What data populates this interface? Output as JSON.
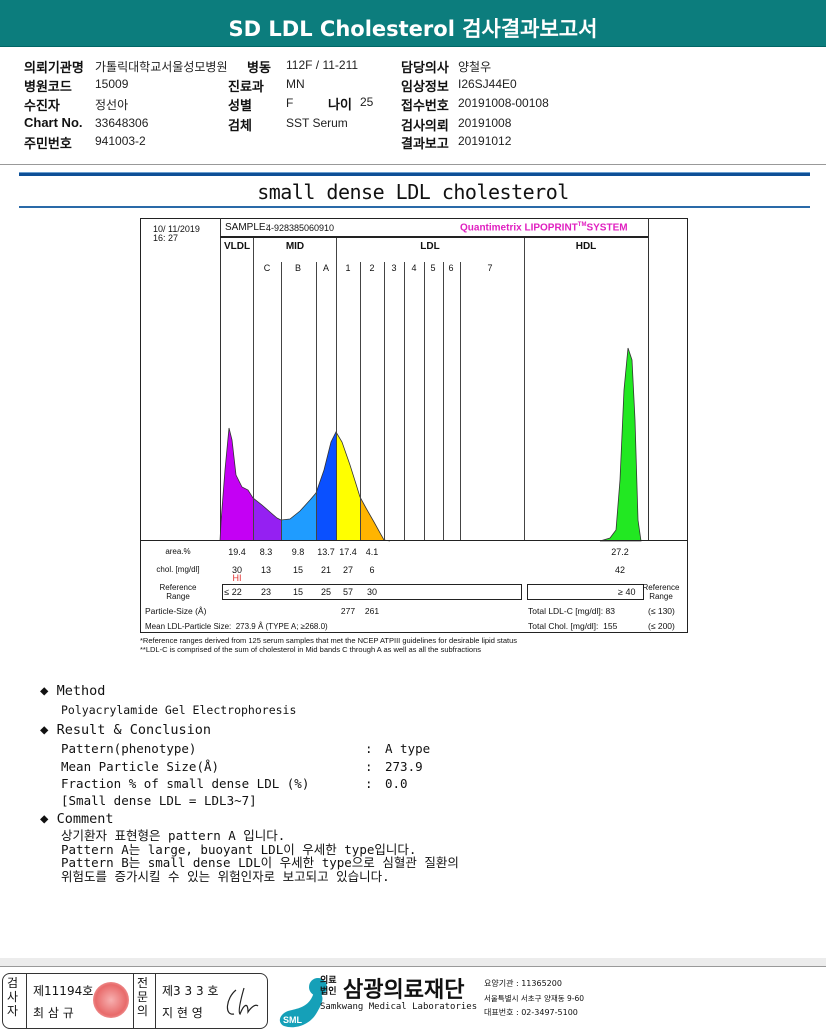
{
  "header": {
    "title": "SD LDL Cholesterol 검사결과보고서"
  },
  "info": {
    "rows": [
      [
        {
          "label": "의뢰기관명",
          "value": "가톨릭대학교서울성모병원"
        },
        {
          "label": "병동",
          "value": "112F / 11-211"
        },
        {
          "label": "담당의사",
          "value": "양철우"
        }
      ],
      [
        {
          "label": "병원코드",
          "value": "15009"
        },
        {
          "label": "진료과",
          "value": "MN"
        },
        {
          "label": "임상정보",
          "value": "I26SJ44E0"
        }
      ],
      [
        {
          "label": "수진자",
          "value": "정선아"
        },
        {
          "label": "성별",
          "value": "F"
        },
        {
          "label": "접수번호",
          "value": "20191008-00108"
        }
      ],
      [
        {
          "label": "Chart No.",
          "value": "33648306"
        },
        {
          "label": "검체",
          "value": "SST Serum"
        },
        {
          "label": "검사의뢰",
          "value": "20191008"
        }
      ],
      [
        {
          "label": "주민번호",
          "value": "941003-2"
        },
        {
          "label": "",
          "value": ""
        },
        {
          "label": "결과보고",
          "value": "20191012"
        }
      ]
    ],
    "age_label": "나이",
    "age_value": "25"
  },
  "section_title": "small dense LDL cholesterol",
  "lipoprint": {
    "datetime_line1": "10/ 11/2019",
    "datetime_line2": "16: 27",
    "sample_label": "SAMPLE:",
    "sample_value": "4-928385060910",
    "brand": "Quantimetrix LIPOPRINT",
    "brand_tm": "TM",
    "brand_suffix": "SYSTEM",
    "groups": {
      "vldl": "VLDL",
      "mid": "MID",
      "ldl": "LDL",
      "hdl": "HDL"
    },
    "bands": [
      "C",
      "B",
      "A",
      "1",
      "2",
      "3",
      "4",
      "5",
      "6",
      "7"
    ],
    "band_colors": {
      "VLDL": "#c400f4",
      "C": "#9520f2",
      "B": "#1f9cff",
      "A": "#0a50ff",
      "1": "#ffff00",
      "2": "#ffb400",
      "HDL": "#22e822"
    },
    "row_labels": {
      "area": "area.%",
      "chol": "chol. [mg/dl]",
      "ref": "Reference Range",
      "ref_right": "Reference Range",
      "particle": "Particle-Size (Å)",
      "mean": "Mean LDL-Particle Size:"
    },
    "area": [
      "19.4",
      "8.3",
      "9.8",
      "13.7",
      "17.4",
      "4.1"
    ],
    "chol": [
      "30",
      "13",
      "15",
      "21",
      "27",
      "6"
    ],
    "chol_flag": "HI",
    "ref": [
      "≤ 22",
      "23",
      "15",
      "25",
      "57",
      "30"
    ],
    "hdl_area": "27.2",
    "hdl_chol": "42",
    "hdl_ref": "≥ 40",
    "particle": [
      "277",
      "261"
    ],
    "mean_value": "273.9 Å  (TYPE A; ≥268.0)",
    "total_ldl_label": "Total LDL-C [mg/dl]:",
    "total_ldl": "83",
    "total_ldl_ref": "(≤ 130)",
    "total_chol_label": "Total Chol. [mg/dl]:",
    "total_chol": "155",
    "total_chol_ref": "(≤ 200)",
    "note1": "*Reference ranges derived from 125 serum samples that met the NCEP ATPIII guidelines for desirable lipid status",
    "note2": "**LDL-C is comprised of the sum of cholesterol in Mid bands C through A as well as all the subfractions"
  },
  "method": {
    "title": "Method",
    "text": "Polyacrylamide Gel Electrophoresis"
  },
  "result": {
    "title": "Result & Conclusion",
    "items": [
      {
        "label": "Pattern(phenotype)",
        "value": "A type"
      },
      {
        "label": "Mean Particle Size(Å)",
        "value": "273.9"
      },
      {
        "label": "Fraction % of small dense LDL (%)",
        "value": "0.0"
      }
    ],
    "note": "[Small dense LDL = LDL3~7]",
    "sep": ":"
  },
  "comment": {
    "title": "Comment",
    "lines": [
      "상기환자 표현형은 pattern A 입니다.",
      "Pattern A는 large, buoyant LDL이 우세한 type입니다.",
      "Pattern B는 small dense LDL이 우세한 type으로 심혈관 질환의",
      "위험도를 증가시킬 수 있는 위험인자로 보고되고 있습니다."
    ]
  },
  "footer": {
    "examiner_label": "검사자",
    "examiner_no": "제11194호",
    "examiner_name": "최 삼 규",
    "doctor_label": "전문의",
    "doctor_no": "제3 3 3 호",
    "doctor_name": "지 현 영",
    "org_prefix1": "의료",
    "org_prefix2": "법인",
    "org_name": "삼광의료재단",
    "org_en": "Samkwang Medical Laboratories",
    "logo_text": "SML",
    "code": "요양기관 : 11365200",
    "address": "서울특별시 서초구 양재동 9-60",
    "phone": "대표번호 : 02-3497-5100"
  }
}
